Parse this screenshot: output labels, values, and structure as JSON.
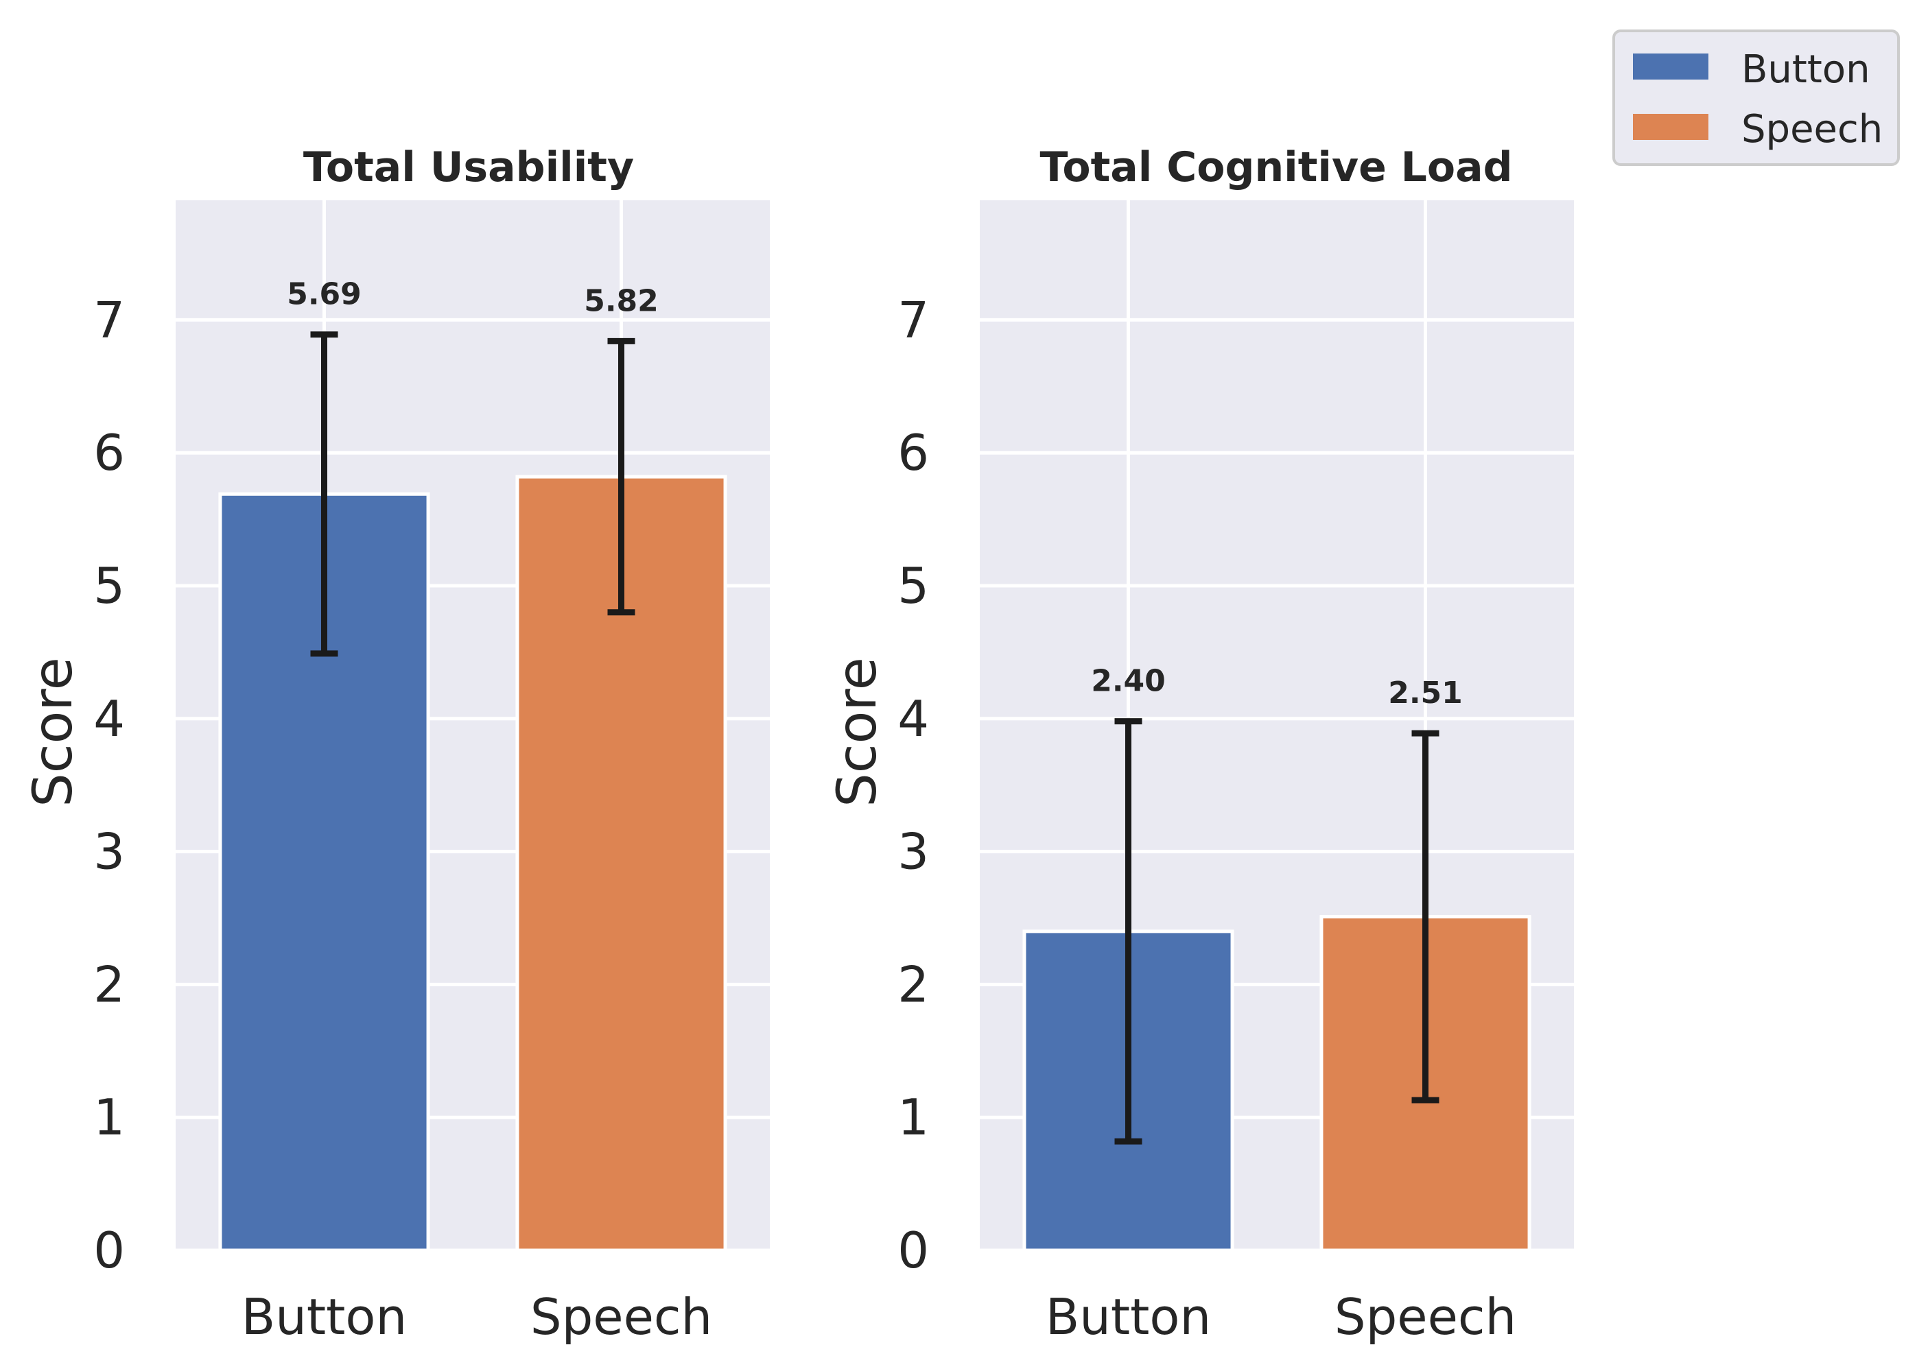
{
  "chart_data": [
    {
      "type": "bar",
      "title": "Total Usability",
      "categories": [
        "Button",
        "Speech"
      ],
      "values": [
        5.69,
        5.82
      ],
      "errors": [
        1.2,
        1.02
      ],
      "value_labels": [
        "5.69",
        "5.82"
      ],
      "colors": [
        "#4c72b0",
        "#dd8452"
      ],
      "xlabel": "",
      "ylabel": "Score",
      "ylim": [
        0,
        7.9
      ],
      "yticks": [
        "0",
        "1",
        "2",
        "3",
        "4",
        "5",
        "6",
        "7"
      ],
      "grid": true
    },
    {
      "type": "bar",
      "title": "Total Cognitive Load",
      "categories": [
        "Button",
        "Speech"
      ],
      "values": [
        2.4,
        2.51
      ],
      "errors": [
        1.58,
        1.38
      ],
      "value_labels": [
        "2.40",
        "2.51"
      ],
      "colors": [
        "#4c72b0",
        "#dd8452"
      ],
      "xlabel": "",
      "ylabel": "Score",
      "ylim": [
        0,
        7.9
      ],
      "yticks": [
        "0",
        "1",
        "2",
        "3",
        "4",
        "5",
        "6",
        "7"
      ],
      "grid": true
    }
  ],
  "legend": {
    "position": "top-right",
    "entries": [
      {
        "label": "Button",
        "color": "#4c72b0"
      },
      {
        "label": "Speech",
        "color": "#dd8452"
      }
    ]
  }
}
